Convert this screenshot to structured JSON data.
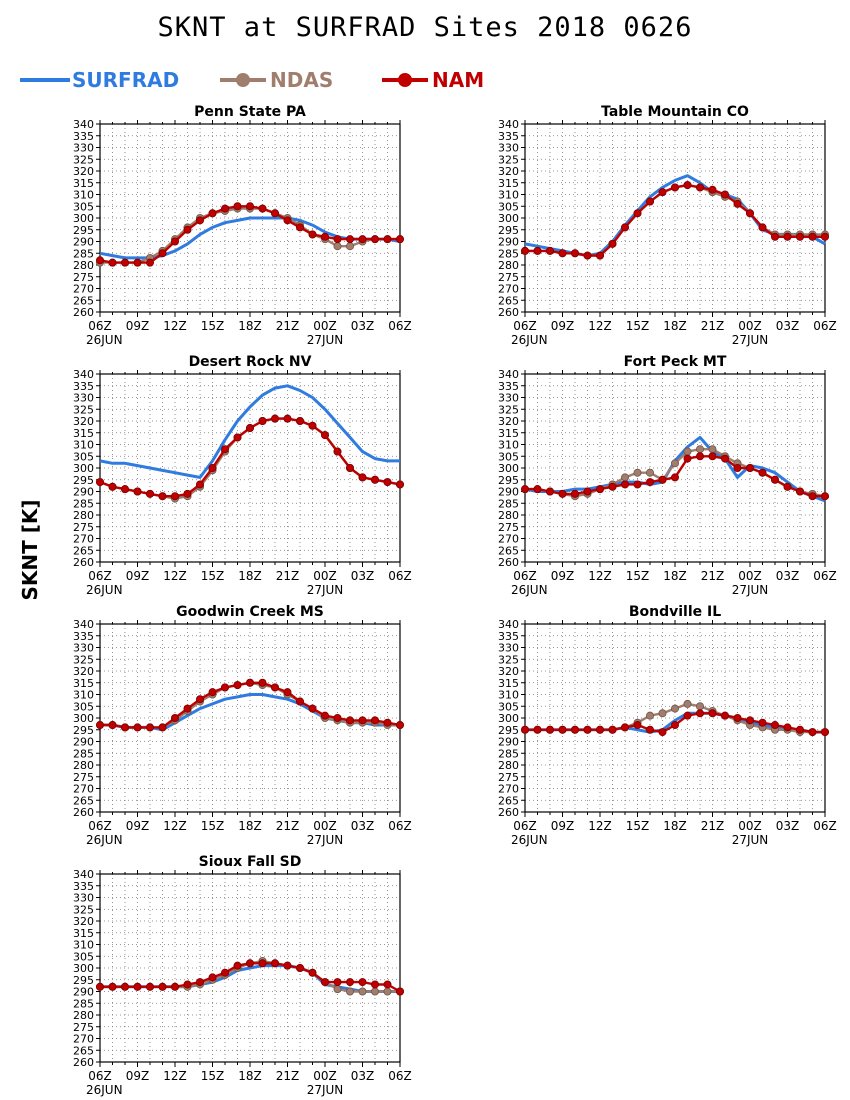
{
  "title": "SKNT at SURFRAD Sites    2018 0626",
  "y_axis_label": "SKNT [K]",
  "legend": [
    {
      "name": "SURFRAD",
      "color": "#2f7be0",
      "marker": "none"
    },
    {
      "name": "NDAS",
      "color": "#a07d6d",
      "marker": "circle"
    },
    {
      "name": "NAM",
      "color": "#c00000",
      "marker": "circle"
    }
  ],
  "chart_data": [
    {
      "type": "line",
      "title": "Penn State PA",
      "x_tick_labels": [
        "06Z",
        "09Z",
        "12Z",
        "15Z",
        "18Z",
        "21Z",
        "00Z",
        "03Z",
        "06Z"
      ],
      "x_date_labels": [
        "26JUN",
        "27JUN"
      ],
      "y_ticks": [
        260,
        265,
        270,
        275,
        280,
        285,
        290,
        295,
        300,
        305,
        310,
        315,
        320,
        325,
        330,
        335,
        340
      ],
      "ylim": [
        260,
        340
      ],
      "x_hours_from_06Z_26JUN": [
        0,
        1,
        2,
        3,
        4,
        5,
        6,
        7,
        8,
        9,
        10,
        11,
        12,
        13,
        14,
        15,
        16,
        17,
        18,
        19,
        20,
        21,
        22,
        23,
        24
      ],
      "series": [
        {
          "name": "SURFRAD",
          "values": [
            285,
            284,
            283,
            283,
            283,
            284,
            286,
            289,
            293,
            296,
            298,
            299,
            300,
            300,
            300,
            300,
            299,
            297,
            294,
            292,
            291,
            291,
            291,
            291,
            290
          ]
        },
        {
          "name": "NDAS",
          "values": [
            281,
            281,
            281,
            281,
            283,
            286,
            291,
            296,
            300,
            302,
            303,
            304,
            304,
            304,
            302,
            300,
            297,
            293,
            291,
            288,
            288,
            290,
            291,
            291,
            291
          ]
        },
        {
          "name": "NAM",
          "values": [
            282,
            281,
            281,
            281,
            281,
            285,
            290,
            295,
            299,
            302,
            304,
            305,
            305,
            304,
            302,
            299,
            296,
            293,
            292,
            291,
            291,
            291,
            291,
            291,
            291
          ]
        }
      ]
    },
    {
      "type": "line",
      "title": "Table Mountain CO",
      "x_tick_labels": [
        "06Z",
        "09Z",
        "12Z",
        "15Z",
        "18Z",
        "21Z",
        "00Z",
        "03Z",
        "06Z"
      ],
      "x_date_labels": [
        "26JUN",
        "27JUN"
      ],
      "y_ticks": [
        260,
        265,
        270,
        275,
        280,
        285,
        290,
        295,
        300,
        305,
        310,
        315,
        320,
        325,
        330,
        335,
        340
      ],
      "ylim": [
        260,
        340
      ],
      "x_hours_from_06Z_26JUN": [
        0,
        1,
        2,
        3,
        4,
        5,
        6,
        7,
        8,
        9,
        10,
        11,
        12,
        13,
        14,
        15,
        16,
        17,
        18,
        19,
        20,
        21,
        22,
        23,
        24
      ],
      "series": [
        {
          "name": "SURFRAD",
          "values": [
            289,
            288,
            287,
            286,
            285,
            284,
            285,
            290,
            297,
            303,
            309,
            313,
            316,
            318,
            315,
            311,
            310,
            308,
            302,
            295,
            293,
            293,
            293,
            292,
            289
          ]
        },
        {
          "name": "NDAS",
          "values": [
            286,
            286,
            286,
            285,
            285,
            284,
            284,
            289,
            296,
            302,
            307,
            311,
            313,
            314,
            313,
            311,
            309,
            307,
            302,
            296,
            293,
            293,
            293,
            293,
            293
          ]
        },
        {
          "name": "NAM",
          "values": [
            286,
            286,
            286,
            285,
            285,
            284,
            284,
            289,
            296,
            302,
            307,
            311,
            313,
            314,
            313,
            312,
            310,
            306,
            302,
            296,
            292,
            292,
            292,
            292,
            292
          ]
        }
      ]
    },
    {
      "type": "line",
      "title": "Desert Rock NV",
      "x_tick_labels": [
        "06Z",
        "09Z",
        "12Z",
        "15Z",
        "18Z",
        "21Z",
        "00Z",
        "03Z",
        "06Z"
      ],
      "x_date_labels": [
        "26JUN",
        "27JUN"
      ],
      "y_ticks": [
        260,
        265,
        270,
        275,
        280,
        285,
        290,
        295,
        300,
        305,
        310,
        315,
        320,
        325,
        330,
        335,
        340
      ],
      "ylim": [
        260,
        340
      ],
      "x_hours_from_06Z_26JUN": [
        0,
        1,
        2,
        3,
        4,
        5,
        6,
        7,
        8,
        9,
        10,
        11,
        12,
        13,
        14,
        15,
        16,
        17,
        18,
        19,
        20,
        21,
        22,
        23,
        24
      ],
      "series": [
        {
          "name": "SURFRAD",
          "values": [
            303,
            302,
            302,
            301,
            300,
            299,
            298,
            297,
            296,
            303,
            312,
            320,
            326,
            331,
            334,
            335,
            333,
            330,
            325,
            319,
            313,
            307,
            304,
            303,
            303
          ]
        },
        {
          "name": "NDAS",
          "values": [
            294,
            292,
            291,
            290,
            289,
            288,
            287,
            288,
            292,
            299,
            307,
            313,
            317,
            320,
            321,
            321,
            320,
            318,
            314,
            307,
            300,
            296,
            295,
            294,
            293
          ]
        },
        {
          "name": "NAM",
          "values": [
            294,
            292,
            291,
            290,
            289,
            288,
            288,
            289,
            293,
            300,
            308,
            313,
            317,
            320,
            321,
            321,
            320,
            318,
            314,
            307,
            300,
            296,
            295,
            294,
            293
          ]
        }
      ]
    },
    {
      "type": "line",
      "title": "Fort Peck MT",
      "x_tick_labels": [
        "06Z",
        "09Z",
        "12Z",
        "15Z",
        "18Z",
        "21Z",
        "00Z",
        "03Z",
        "06Z"
      ],
      "x_date_labels": [
        "26JUN",
        "27JUN"
      ],
      "y_ticks": [
        260,
        265,
        270,
        275,
        280,
        285,
        290,
        295,
        300,
        305,
        310,
        315,
        320,
        325,
        330,
        335,
        340
      ],
      "ylim": [
        260,
        340
      ],
      "x_hours_from_06Z_26JUN": [
        0,
        1,
        2,
        3,
        4,
        5,
        6,
        7,
        8,
        9,
        10,
        11,
        12,
        13,
        14,
        15,
        16,
        17,
        18,
        19,
        20,
        21,
        22,
        23,
        24
      ],
      "series": [
        {
          "name": "SURFRAD",
          "values": [
            291,
            290,
            290,
            290,
            291,
            291,
            292,
            293,
            294,
            294,
            293,
            294,
            303,
            309,
            313,
            307,
            304,
            296,
            301,
            300,
            298,
            294,
            290,
            288,
            286
          ]
        },
        {
          "name": "NDAS",
          "values": [
            291,
            291,
            290,
            289,
            288,
            289,
            291,
            293,
            296,
            298,
            298,
            295,
            302,
            307,
            308,
            308,
            305,
            302,
            300,
            298,
            295,
            292,
            290,
            289,
            288
          ]
        },
        {
          "name": "NAM",
          "values": [
            291,
            291,
            290,
            289,
            289,
            290,
            291,
            292,
            293,
            293,
            294,
            295,
            296,
            304,
            305,
            305,
            304,
            300,
            300,
            298,
            295,
            292,
            290,
            288,
            288
          ]
        }
      ]
    },
    {
      "type": "line",
      "title": "Goodwin Creek MS",
      "x_tick_labels": [
        "06Z",
        "09Z",
        "12Z",
        "15Z",
        "18Z",
        "21Z",
        "00Z",
        "03Z",
        "06Z"
      ],
      "x_date_labels": [
        "26JUN",
        "27JUN"
      ],
      "y_ticks": [
        260,
        265,
        270,
        275,
        280,
        285,
        290,
        295,
        300,
        305,
        310,
        315,
        320,
        325,
        330,
        335,
        340
      ],
      "ylim": [
        260,
        340
      ],
      "x_hours_from_06Z_26JUN": [
        0,
        1,
        2,
        3,
        4,
        5,
        6,
        7,
        8,
        9,
        10,
        11,
        12,
        13,
        14,
        15,
        16,
        17,
        18,
        19,
        20,
        21,
        22,
        23,
        24
      ],
      "series": [
        {
          "name": "SURFRAD",
          "values": [
            297,
            297,
            296,
            296,
            296,
            295,
            298,
            301,
            304,
            306,
            308,
            309,
            310,
            310,
            309,
            308,
            306,
            303,
            300,
            299,
            298,
            298,
            297,
            297,
            297
          ]
        },
        {
          "name": "NDAS",
          "values": [
            297,
            297,
            296,
            296,
            296,
            296,
            299,
            303,
            307,
            310,
            313,
            314,
            315,
            314,
            313,
            310,
            307,
            304,
            300,
            299,
            298,
            298,
            298,
            297,
            297
          ]
        },
        {
          "name": "NAM",
          "values": [
            297,
            297,
            296,
            296,
            296,
            296,
            300,
            304,
            308,
            311,
            313,
            314,
            315,
            315,
            313,
            311,
            307,
            304,
            301,
            300,
            299,
            299,
            299,
            298,
            297
          ]
        }
      ]
    },
    {
      "type": "line",
      "title": "Bondville IL",
      "x_tick_labels": [
        "06Z",
        "09Z",
        "12Z",
        "15Z",
        "18Z",
        "21Z",
        "00Z",
        "03Z",
        "06Z"
      ],
      "x_date_labels": [
        "26JUN",
        "27JUN"
      ],
      "y_ticks": [
        260,
        265,
        270,
        275,
        280,
        285,
        290,
        295,
        300,
        305,
        310,
        315,
        320,
        325,
        330,
        335,
        340
      ],
      "ylim": [
        260,
        340
      ],
      "x_hours_from_06Z_26JUN": [
        0,
        1,
        2,
        3,
        4,
        5,
        6,
        7,
        8,
        9,
        10,
        11,
        12,
        13,
        14,
        15,
        16,
        17,
        18,
        19,
        20,
        21,
        22,
        23,
        24
      ],
      "series": [
        {
          "name": "SURFRAD",
          "values": [
            295,
            295,
            295,
            295,
            295,
            295,
            295,
            295,
            296,
            295,
            294,
            295,
            299,
            302,
            302,
            302,
            301,
            300,
            298,
            297,
            296,
            295,
            295,
            294,
            294
          ]
        },
        {
          "name": "NDAS",
          "values": [
            295,
            295,
            295,
            295,
            295,
            295,
            295,
            295,
            296,
            298,
            301,
            302,
            304,
            306,
            305,
            303,
            301,
            299,
            297,
            296,
            295,
            295,
            294,
            294,
            294
          ]
        },
        {
          "name": "NAM",
          "values": [
            295,
            295,
            295,
            295,
            295,
            295,
            295,
            295,
            296,
            297,
            295,
            294,
            297,
            301,
            302,
            302,
            301,
            300,
            299,
            298,
            297,
            296,
            295,
            294,
            294
          ]
        }
      ]
    },
    {
      "type": "line",
      "title": "Sioux Fall SD",
      "x_tick_labels": [
        "06Z",
        "09Z",
        "12Z",
        "15Z",
        "18Z",
        "21Z",
        "00Z",
        "03Z",
        "06Z"
      ],
      "x_date_labels": [
        "26JUN",
        "27JUN"
      ],
      "y_ticks": [
        260,
        265,
        270,
        275,
        280,
        285,
        290,
        295,
        300,
        305,
        310,
        315,
        320,
        325,
        330,
        335,
        340
      ],
      "ylim": [
        260,
        340
      ],
      "x_hours_from_06Z_26JUN": [
        0,
        1,
        2,
        3,
        4,
        5,
        6,
        7,
        8,
        9,
        10,
        11,
        12,
        13,
        14,
        15,
        16,
        17,
        18,
        19,
        20,
        21,
        22,
        23,
        24
      ],
      "series": [
        {
          "name": "SURFRAD",
          "values": [
            292,
            292,
            292,
            292,
            292,
            292,
            292,
            292,
            293,
            294,
            296,
            299,
            300,
            301,
            301,
            301,
            300,
            298,
            293,
            292,
            291,
            290,
            290,
            290,
            290
          ]
        },
        {
          "name": "NDAS",
          "values": [
            292,
            292,
            292,
            292,
            292,
            292,
            292,
            292,
            293,
            295,
            297,
            300,
            302,
            303,
            302,
            301,
            300,
            298,
            294,
            291,
            290,
            290,
            290,
            290,
            290
          ]
        },
        {
          "name": "NAM",
          "values": [
            292,
            292,
            292,
            292,
            292,
            292,
            292,
            293,
            294,
            296,
            298,
            301,
            302,
            302,
            302,
            301,
            300,
            298,
            294,
            294,
            294,
            294,
            293,
            293,
            290
          ]
        }
      ]
    }
  ]
}
